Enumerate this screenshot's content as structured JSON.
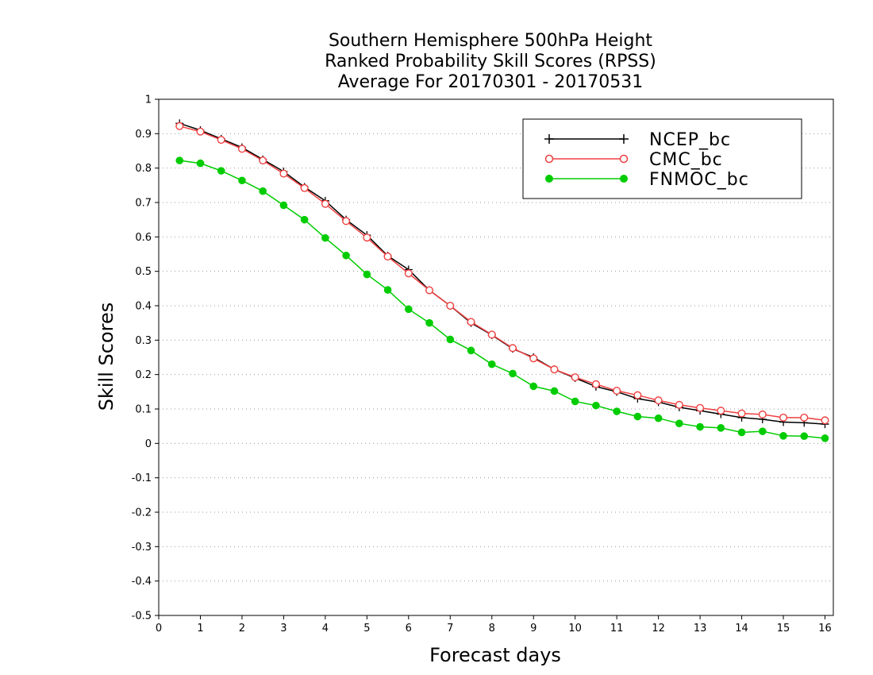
{
  "chart_data": {
    "type": "line",
    "title": [
      "Southern Hemisphere 500hPa Height",
      "Ranked Probability Skill Scores (RPSS)",
      "Average For 20170301 - 20170531"
    ],
    "xlabel": "Forecast days",
    "ylabel": "Skill Scores",
    "xlim": [
      0,
      16.2
    ],
    "ylim": [
      -0.5,
      1
    ],
    "x_ticks": [
      0,
      1,
      2,
      3,
      4,
      5,
      6,
      7,
      8,
      9,
      10,
      11,
      12,
      13,
      14,
      15,
      16
    ],
    "y_ticks": [
      -0.5,
      -0.4,
      -0.3,
      -0.2,
      -0.1,
      0,
      0.1,
      0.2,
      0.3,
      0.4,
      0.5,
      0.6,
      0.7,
      0.8,
      0.9,
      1
    ],
    "y_tick_labels": [
      "-0.5",
      "-0.4",
      "-0.3",
      "-0.2",
      "-0.1",
      "0",
      "0.1",
      "0.2",
      "0.3",
      "0.4",
      "0.5",
      "0.6",
      "0.7",
      "0.8",
      "0.9",
      "1"
    ],
    "grid": "horizontal dotted",
    "legend_position": "top-right",
    "x": [
      0.5,
      1,
      1.5,
      2,
      2.5,
      3,
      3.5,
      4,
      4.5,
      5,
      5.5,
      6,
      6.5,
      7,
      7.5,
      8,
      8.5,
      9,
      9.5,
      10,
      10.5,
      11,
      11.5,
      12,
      12.5,
      13,
      13.5,
      14,
      14.5,
      15,
      15.5,
      16
    ],
    "series": [
      {
        "name": "NCEP_bc",
        "color": "#000000",
        "marker": "plus",
        "values": [
          0.93,
          0.91,
          0.885,
          0.86,
          0.825,
          0.79,
          0.745,
          0.705,
          0.65,
          0.605,
          0.545,
          0.505,
          0.445,
          0.4,
          0.35,
          0.315,
          0.275,
          0.25,
          0.215,
          0.19,
          0.165,
          0.15,
          0.13,
          0.12,
          0.105,
          0.095,
          0.085,
          0.075,
          0.07,
          0.062,
          0.06,
          0.056
        ]
      },
      {
        "name": "CMC_bc",
        "color": "#f04040",
        "marker": "open-circle",
        "values": [
          0.922,
          0.906,
          0.882,
          0.856,
          0.822,
          0.784,
          0.742,
          0.696,
          0.646,
          0.598,
          0.543,
          0.494,
          0.445,
          0.4,
          0.353,
          0.316,
          0.277,
          0.247,
          0.215,
          0.192,
          0.172,
          0.153,
          0.14,
          0.125,
          0.112,
          0.103,
          0.095,
          0.087,
          0.084,
          0.075,
          0.075,
          0.067
        ]
      },
      {
        "name": "FNMOC_bc",
        "color": "#00cc00",
        "marker": "filled-circle",
        "values": [
          0.822,
          0.814,
          0.792,
          0.764,
          0.733,
          0.692,
          0.65,
          0.597,
          0.546,
          0.491,
          0.446,
          0.39,
          0.35,
          0.302,
          0.27,
          0.23,
          0.203,
          0.166,
          0.152,
          0.122,
          0.11,
          0.093,
          0.078,
          0.073,
          0.058,
          0.048,
          0.045,
          0.032,
          0.035,
          0.022,
          0.021,
          0.015
        ]
      }
    ]
  }
}
